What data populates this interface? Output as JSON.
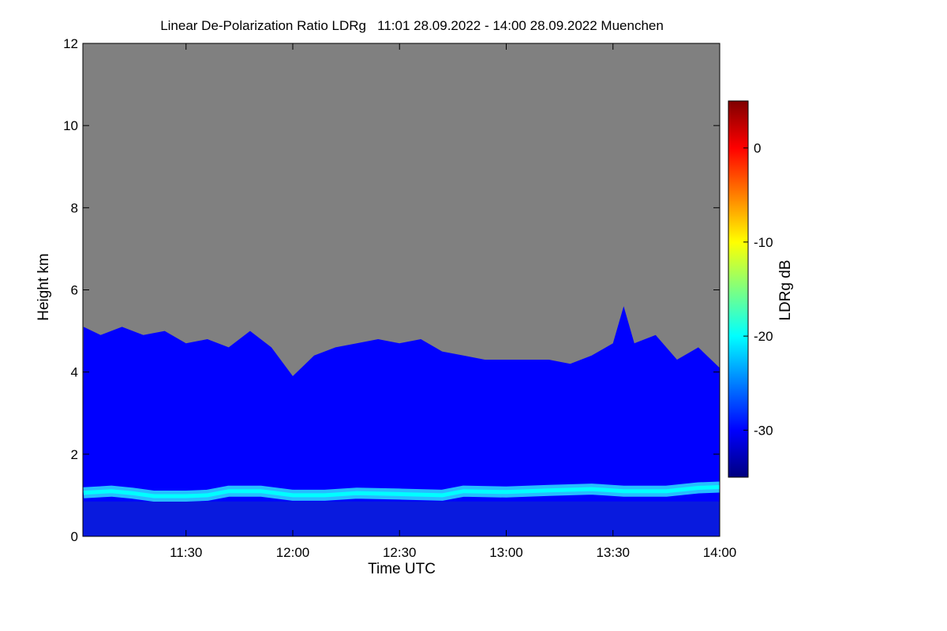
{
  "chart_data": {
    "type": "heatmap",
    "title": "Linear De-Polarization Ratio LDRg   11:01 28.09.2022 - 14:00 28.09.2022 Muenchen",
    "xlabel": "Time UTC",
    "ylabel": "Height km",
    "colorbar_label": "LDRg dB",
    "x_range_hours": [
      11.0167,
      14.0
    ],
    "xlim_hours": [
      11.0167,
      14.0
    ],
    "ylim": [
      0,
      12
    ],
    "clim": [
      -35,
      5
    ],
    "x_ticks": [
      {
        "label": "11:30",
        "value": 11.5
      },
      {
        "label": "12:00",
        "value": 12.0
      },
      {
        "label": "12:30",
        "value": 12.5
      },
      {
        "label": "13:00",
        "value": 13.0
      },
      {
        "label": "13:30",
        "value": 13.5
      },
      {
        "label": "14:00",
        "value": 14.0
      }
    ],
    "y_ticks": [
      {
        "label": "0",
        "value": 0
      },
      {
        "label": "2",
        "value": 2
      },
      {
        "label": "4",
        "value": 4
      },
      {
        "label": "6",
        "value": 6
      },
      {
        "label": "8",
        "value": 8
      },
      {
        "label": "10",
        "value": 10
      },
      {
        "label": "12",
        "value": 12
      }
    ],
    "colorbar_ticks": [
      {
        "label": "0",
        "value": 0
      },
      {
        "label": "-10",
        "value": -10
      },
      {
        "label": "-20",
        "value": -20
      },
      {
        "label": "-30",
        "value": -30
      }
    ],
    "colormap": [
      "#00007f",
      "#0000ff",
      "#007fff",
      "#00ffff",
      "#7fff7f",
      "#ffff00",
      "#ff7f00",
      "#ff0000",
      "#7f0000"
    ],
    "no_data_color": "#808080",
    "background_ldr_db": -32,
    "layer_ldr_db": -18,
    "layer_height_km": [
      [
        11.02,
        1.06
      ],
      [
        11.15,
        1.1
      ],
      [
        11.25,
        1.05
      ],
      [
        11.35,
        0.98
      ],
      [
        11.5,
        0.98
      ],
      [
        11.6,
        1.0
      ],
      [
        11.7,
        1.1
      ],
      [
        11.85,
        1.1
      ],
      [
        12.0,
        1.0
      ],
      [
        12.15,
        1.0
      ],
      [
        12.3,
        1.05
      ],
      [
        12.5,
        1.03
      ],
      [
        12.7,
        1.0
      ],
      [
        12.8,
        1.1
      ],
      [
        13.0,
        1.08
      ],
      [
        13.2,
        1.12
      ],
      [
        13.4,
        1.15
      ],
      [
        13.55,
        1.1
      ],
      [
        13.75,
        1.1
      ],
      [
        13.9,
        1.18
      ],
      [
        14.0,
        1.2
      ]
    ],
    "top_of_signal_km": [
      [
        11.02,
        5.1
      ],
      [
        11.1,
        4.9
      ],
      [
        11.2,
        5.1
      ],
      [
        11.3,
        4.9
      ],
      [
        11.4,
        5.0
      ],
      [
        11.5,
        4.7
      ],
      [
        11.6,
        4.8
      ],
      [
        11.7,
        4.6
      ],
      [
        11.8,
        5.0
      ],
      [
        11.9,
        4.6
      ],
      [
        12.0,
        3.9
      ],
      [
        12.1,
        4.4
      ],
      [
        12.2,
        4.6
      ],
      [
        12.3,
        4.7
      ],
      [
        12.4,
        4.8
      ],
      [
        12.5,
        4.7
      ],
      [
        12.6,
        4.8
      ],
      [
        12.7,
        4.5
      ],
      [
        12.8,
        4.4
      ],
      [
        12.9,
        4.3
      ],
      [
        13.0,
        4.3
      ],
      [
        13.1,
        4.3
      ],
      [
        13.2,
        4.3
      ],
      [
        13.3,
        4.2
      ],
      [
        13.4,
        4.4
      ],
      [
        13.5,
        4.7
      ],
      [
        13.55,
        5.6
      ],
      [
        13.6,
        4.7
      ],
      [
        13.7,
        4.9
      ],
      [
        13.8,
        4.3
      ],
      [
        13.9,
        4.6
      ],
      [
        14.0,
        4.1
      ]
    ]
  }
}
